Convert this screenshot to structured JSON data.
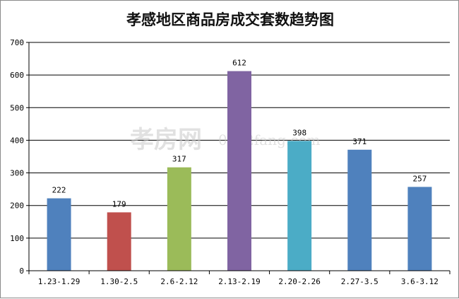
{
  "chart_data": {
    "type": "bar",
    "title": "孝感地区商品房成交套数趋势图",
    "categories": [
      "1.23-1.29",
      "1.30-2.5",
      "2.6-2.12",
      "2.13-2.19",
      "2.20-2.26",
      "2.27-3.5",
      "3.6-3.12"
    ],
    "values": [
      222,
      179,
      317,
      612,
      398,
      371,
      257
    ],
    "colors": [
      "#4f81bd",
      "#c0504d",
      "#9bbb59",
      "#8064a2",
      "#4bacc6",
      "#4f81bd",
      "#4f81bd"
    ],
    "ylim": [
      0,
      700
    ],
    "yticks": [
      0,
      100,
      200,
      300,
      400,
      500,
      600,
      700
    ],
    "grid": true,
    "legend": "none",
    "xlabel": "",
    "ylabel": ""
  },
  "watermark": {
    "brand": "孝房网",
    "site": "0712fang.com"
  }
}
